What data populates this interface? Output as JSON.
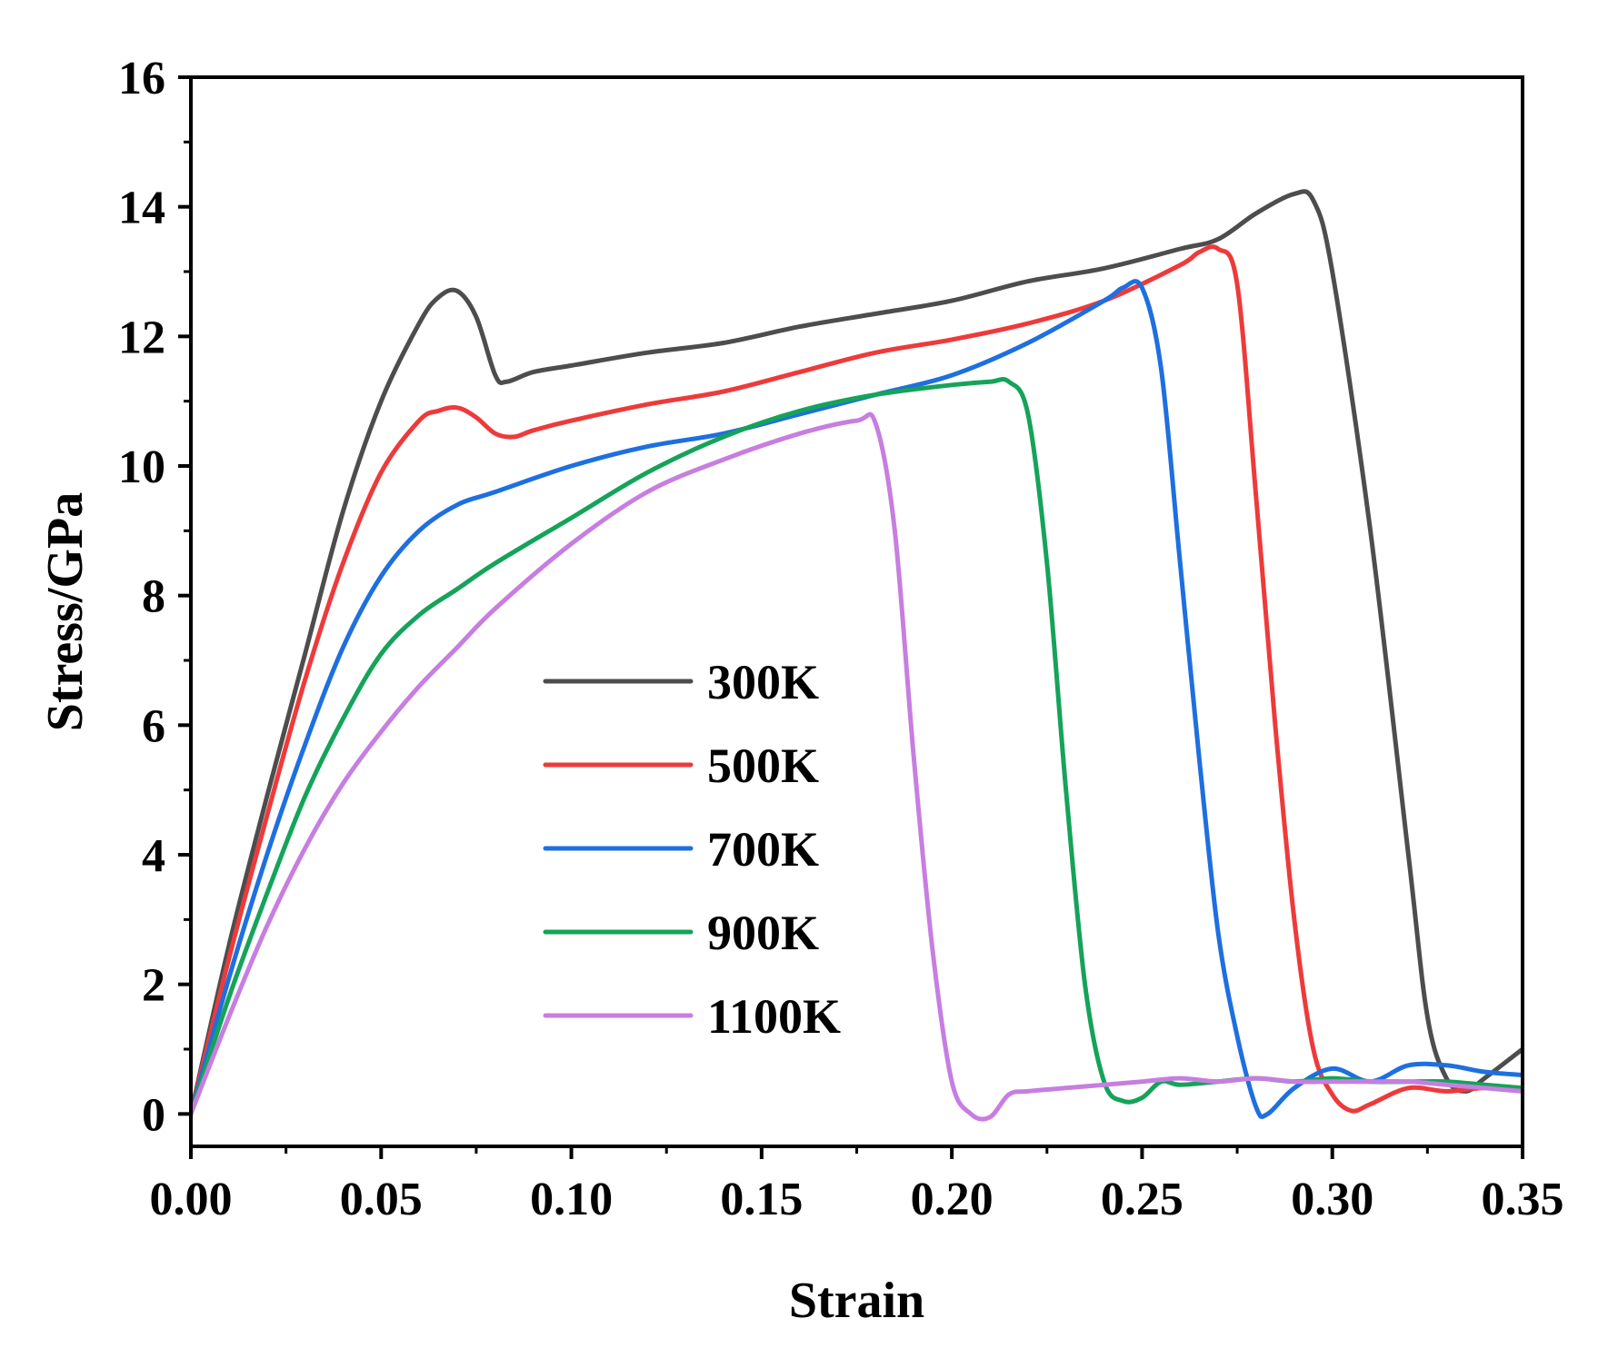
{
  "chart_data": {
    "type": "line",
    "title": "",
    "xlabel": "Strain",
    "ylabel": "Stress/GPa",
    "xlim": [
      0,
      0.35
    ],
    "ylim": [
      -0.5,
      16
    ],
    "xticks": [
      0.0,
      0.05,
      0.1,
      0.15,
      0.2,
      0.25,
      0.3,
      0.35
    ],
    "xtick_labels": [
      "0.00",
      "0.05",
      "0.10",
      "0.15",
      "0.20",
      "0.25",
      "0.30",
      "0.35"
    ],
    "yticks": [
      0,
      2,
      4,
      6,
      8,
      10,
      12,
      14,
      16
    ],
    "ytick_labels": [
      "0",
      "2",
      "4",
      "6",
      "8",
      "10",
      "12",
      "14",
      "16"
    ],
    "grid": false,
    "legend_position": "center",
    "series": [
      {
        "name": "300K",
        "color": "#4d4d4d",
        "x": [
          0,
          0.01,
          0.02,
          0.03,
          0.04,
          0.05,
          0.06,
          0.065,
          0.07,
          0.075,
          0.08,
          0.083,
          0.09,
          0.1,
          0.12,
          0.14,
          0.16,
          0.18,
          0.2,
          0.22,
          0.24,
          0.26,
          0.27,
          0.28,
          0.29,
          0.295,
          0.3,
          0.31,
          0.32,
          0.325,
          0.33,
          0.335,
          0.34,
          0.35
        ],
        "y": [
          0,
          2.6,
          4.9,
          7.1,
          9.3,
          11.0,
          12.2,
          12.6,
          12.7,
          12.3,
          11.4,
          11.3,
          11.45,
          11.55,
          11.75,
          11.9,
          12.15,
          12.35,
          12.55,
          12.85,
          13.05,
          13.35,
          13.5,
          13.9,
          14.2,
          14.1,
          13.0,
          9.0,
          4.0,
          1.5,
          0.55,
          0.35,
          0.55,
          1.0
        ]
      },
      {
        "name": "500K",
        "color": "#ee3a3a",
        "x": [
          0,
          0.01,
          0.02,
          0.03,
          0.04,
          0.05,
          0.06,
          0.065,
          0.07,
          0.075,
          0.08,
          0.085,
          0.09,
          0.1,
          0.12,
          0.14,
          0.16,
          0.18,
          0.2,
          0.22,
          0.24,
          0.26,
          0.265,
          0.27,
          0.275,
          0.28,
          0.285,
          0.29,
          0.295,
          0.3,
          0.305,
          0.31,
          0.32,
          0.33,
          0.34,
          0.35
        ],
        "y": [
          0,
          2.4,
          4.6,
          6.7,
          8.5,
          9.9,
          10.7,
          10.85,
          10.9,
          10.75,
          10.5,
          10.45,
          10.55,
          10.7,
          10.95,
          11.15,
          11.45,
          11.75,
          11.95,
          12.2,
          12.55,
          13.1,
          13.3,
          13.35,
          12.8,
          9.5,
          6.0,
          3.0,
          1.0,
          0.3,
          0.05,
          0.15,
          0.4,
          0.35,
          0.4,
          0.35
        ]
      },
      {
        "name": "700K",
        "color": "#1e6fe0",
        "x": [
          0,
          0.01,
          0.02,
          0.03,
          0.04,
          0.05,
          0.06,
          0.07,
          0.08,
          0.1,
          0.12,
          0.14,
          0.16,
          0.18,
          0.2,
          0.22,
          0.24,
          0.245,
          0.25,
          0.255,
          0.26,
          0.265,
          0.27,
          0.275,
          0.28,
          0.283,
          0.29,
          0.3,
          0.31,
          0.32,
          0.33,
          0.34,
          0.35
        ],
        "y": [
          0,
          2.1,
          4.0,
          5.7,
          7.2,
          8.3,
          9.0,
          9.4,
          9.6,
          10.0,
          10.3,
          10.5,
          10.8,
          11.1,
          11.4,
          11.9,
          12.55,
          12.75,
          12.75,
          11.5,
          8.5,
          5.5,
          2.8,
          1.2,
          0.1,
          0.0,
          0.4,
          0.7,
          0.5,
          0.75,
          0.75,
          0.65,
          0.6
        ]
      },
      {
        "name": "900K",
        "color": "#15a35a",
        "x": [
          0,
          0.01,
          0.02,
          0.03,
          0.04,
          0.05,
          0.06,
          0.07,
          0.08,
          0.1,
          0.12,
          0.14,
          0.16,
          0.18,
          0.2,
          0.21,
          0.215,
          0.22,
          0.225,
          0.23,
          0.235,
          0.24,
          0.245,
          0.25,
          0.255,
          0.26,
          0.27,
          0.28,
          0.29,
          0.3,
          0.31,
          0.32,
          0.33,
          0.34,
          0.35
        ],
        "y": [
          0,
          1.8,
          3.4,
          4.9,
          6.1,
          7.1,
          7.7,
          8.1,
          8.5,
          9.2,
          9.9,
          10.45,
          10.85,
          11.1,
          11.25,
          11.3,
          11.3,
          10.8,
          8.5,
          5.0,
          2.0,
          0.5,
          0.2,
          0.25,
          0.5,
          0.45,
          0.5,
          0.55,
          0.5,
          0.55,
          0.5,
          0.5,
          0.5,
          0.45,
          0.4
        ]
      },
      {
        "name": "1100K",
        "color": "#c77ee0",
        "x": [
          0,
          0.01,
          0.02,
          0.03,
          0.04,
          0.05,
          0.06,
          0.07,
          0.08,
          0.1,
          0.12,
          0.14,
          0.16,
          0.175,
          0.18,
          0.185,
          0.19,
          0.195,
          0.2,
          0.205,
          0.21,
          0.215,
          0.22,
          0.23,
          0.24,
          0.25,
          0.26,
          0.27,
          0.28,
          0.29,
          0.3,
          0.31,
          0.32,
          0.33,
          0.34,
          0.35
        ],
        "y": [
          0,
          1.5,
          2.9,
          4.1,
          5.1,
          5.9,
          6.6,
          7.2,
          7.8,
          8.8,
          9.6,
          10.1,
          10.5,
          10.7,
          10.65,
          9.0,
          5.5,
          2.5,
          0.5,
          0.0,
          -0.05,
          0.3,
          0.35,
          0.4,
          0.45,
          0.5,
          0.55,
          0.5,
          0.55,
          0.5,
          0.5,
          0.5,
          0.5,
          0.45,
          0.4,
          0.35
        ]
      }
    ]
  }
}
